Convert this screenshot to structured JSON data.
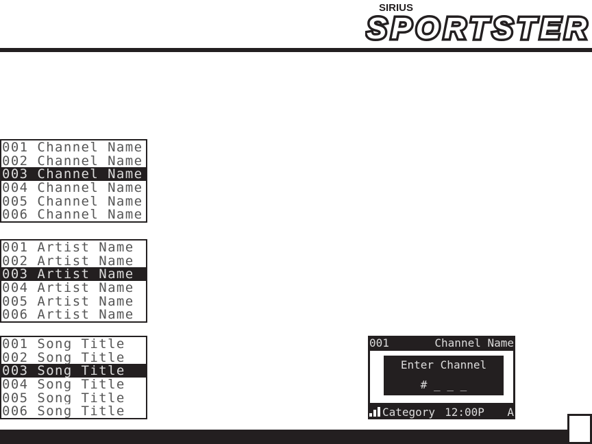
{
  "logo": {
    "brand": "SIRIUS",
    "product": "SPORTSTER"
  },
  "channel_list": [
    "001 Channel Name",
    "002 Channel Name",
    "003 Channel Name",
    "004 Channel Name",
    "005 Channel Name",
    "006 Channel Name"
  ],
  "artist_list": [
    "001 Artist Name",
    "002 Artist Name",
    "003 Artist Name",
    "004 Artist Name",
    "005 Artist Name",
    "006 Artist Name"
  ],
  "song_list": [
    "001 Song Title",
    "002 Song Title",
    "003 Song Title",
    "004 Song Title",
    "005 Song Title",
    "006 Song Title"
  ],
  "selected_index": 2,
  "display": {
    "channel_number": "001",
    "channel_name": "Channel Name",
    "prompt": "Enter Channel",
    "entry": "# _ _ _",
    "category": "Category",
    "time": "12:00P",
    "mode": "A",
    "signal_bars": 3
  },
  "colors": {
    "ink": "#231f20"
  }
}
